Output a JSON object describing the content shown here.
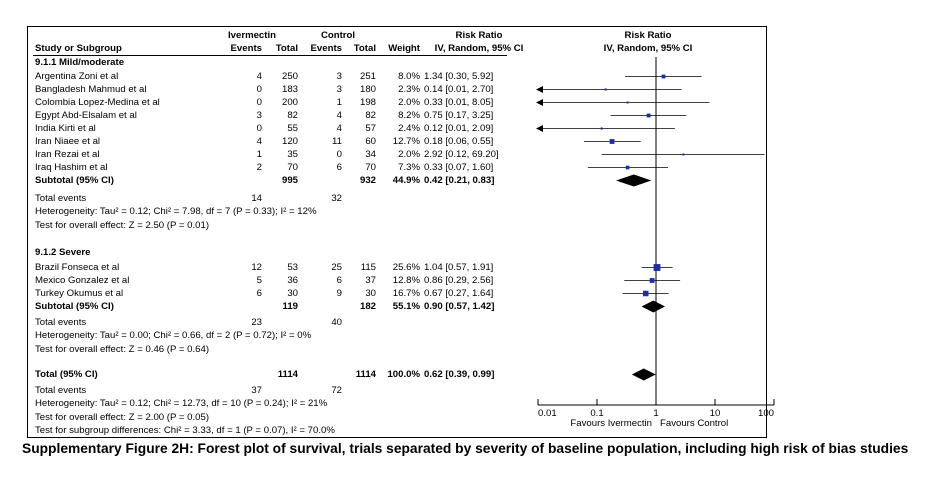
{
  "header": {
    "group1": "Ivermectin",
    "group2": "Control",
    "rr_title": "Risk Ratio",
    "plot_title": "Risk Ratio",
    "study_col": "Study or Subgroup",
    "events1": "Events",
    "total1": "Total",
    "events2": "Events",
    "total2": "Total",
    "weight": "Weight",
    "method": "IV, Random, 95% CI",
    "plot_method": "IV, Random, 95% CI"
  },
  "subgroups": [
    {
      "title": "9.1.1 Mild/moderate",
      "studies": [
        {
          "name": "Argentina Zoni et al",
          "ee": "4",
          "et": "250",
          "ce": "3",
          "ct": "251",
          "w": "8.0%",
          "rr": "1.34 [0.30, 5.92]"
        },
        {
          "name": "Bangladesh Mahmud et al",
          "ee": "0",
          "et": "183",
          "ce": "3",
          "ct": "180",
          "w": "2.3%",
          "rr": "0.14 [0.01, 2.70]"
        },
        {
          "name": "Colombia Lopez-Medina et al",
          "ee": "0",
          "et": "200",
          "ce": "1",
          "ct": "198",
          "w": "2.0%",
          "rr": "0.33 [0.01, 8.05]"
        },
        {
          "name": "Egypt Abd-Elsalam et al",
          "ee": "3",
          "et": "82",
          "ce": "4",
          "ct": "82",
          "w": "8.2%",
          "rr": "0.75 [0.17, 3.25]"
        },
        {
          "name": "India Kirti et al",
          "ee": "0",
          "et": "55",
          "ce": "4",
          "ct": "57",
          "w": "2.4%",
          "rr": "0.12 [0.01, 2.09]"
        },
        {
          "name": "Iran Niaee et al",
          "ee": "4",
          "et": "120",
          "ce": "11",
          "ct": "60",
          "w": "12.7%",
          "rr": "0.18 [0.06, 0.55]"
        },
        {
          "name": "Iran Rezai et al",
          "ee": "1",
          "et": "35",
          "ce": "0",
          "ct": "34",
          "w": "2.0%",
          "rr": "2.92 [0.12, 69.20]"
        },
        {
          "name": "Iraq Hashim et al",
          "ee": "2",
          "et": "70",
          "ce": "6",
          "ct": "70",
          "w": "7.3%",
          "rr": "0.33 [0.07, 1.60]"
        }
      ],
      "subtotal": {
        "label": "Subtotal (95% CI)",
        "et": "995",
        "ct": "932",
        "w": "44.9%",
        "rr": "0.42 [0.21, 0.83]"
      },
      "total_events": {
        "label": "Total events",
        "ee": "14",
        "ce": "32"
      },
      "heterogeneity": "Heterogeneity: Tau² = 0.12; Chi² = 7.98, df = 7 (P = 0.33); I² = 12%",
      "overall": "Test for overall effect: Z = 2.50 (P = 0.01)"
    },
    {
      "title": "9.1.2 Severe",
      "studies": [
        {
          "name": "Brazil Fonseca et al",
          "ee": "12",
          "et": "53",
          "ce": "25",
          "ct": "115",
          "w": "25.6%",
          "rr": "1.04 [0.57, 1.91]"
        },
        {
          "name": "Mexico Gonzalez et al",
          "ee": "5",
          "et": "36",
          "ce": "6",
          "ct": "37",
          "w": "12.8%",
          "rr": "0.86 [0.29, 2.56]"
        },
        {
          "name": "Turkey Okumus et al",
          "ee": "6",
          "et": "30",
          "ce": "9",
          "ct": "30",
          "w": "16.7%",
          "rr": "0.67 [0.27, 1.64]"
        }
      ],
      "subtotal": {
        "label": "Subtotal (95% CI)",
        "et": "119",
        "ct": "182",
        "w": "55.1%",
        "rr": "0.90 [0.57, 1.42]"
      },
      "total_events": {
        "label": "Total events",
        "ee": "23",
        "ce": "40"
      },
      "heterogeneity": "Heterogeneity: Tau² = 0.00; Chi² = 0.66, df = 2 (P = 0.72); I² = 0%",
      "overall": "Test for overall effect: Z = 0.46 (P = 0.64)"
    }
  ],
  "total": {
    "label": "Total (95% CI)",
    "et": "1114",
    "ct": "1114",
    "w": "100.0%",
    "rr": "0.62 [0.39, 0.99]"
  },
  "total_events": {
    "label": "Total events",
    "ee": "37",
    "ce": "72"
  },
  "total_heterogeneity": "Heterogeneity: Tau² = 0.12; Chi² = 12.73, df = 10 (P = 0.24); I² = 21%",
  "total_overall": "Test for overall effect: Z = 2.00 (P = 0.05)",
  "subgroup_diff": "Test for subgroup differences: Chi² = 3.33, df = 1 (P = 0.07), I² = 70.0%",
  "caption": "Supplementary Figure 2H: Forest plot of survival, trials separated by severity of baseline population, including high risk of bias studies",
  "colors": {
    "marker": "#1c2ea6",
    "line": "#000000"
  },
  "chart_data": {
    "type": "forest",
    "scale": "log",
    "xlim": [
      0.01,
      100
    ],
    "ticks": [
      "0.01",
      "0.1",
      "1",
      "10",
      "100"
    ],
    "tick_values": [
      0.01,
      0.1,
      1,
      10,
      100
    ],
    "left_label": "Favours Ivermectin",
    "right_label": "Favours Control",
    "studies": [
      {
        "group": 0,
        "name": "Argentina Zoni et al",
        "rr": 1.34,
        "lo": 0.3,
        "hi": 5.92,
        "weight": 8.0
      },
      {
        "group": 0,
        "name": "Bangladesh Mahmud et al",
        "rr": 0.14,
        "lo": 0.01,
        "hi": 2.7,
        "weight": 2.3
      },
      {
        "group": 0,
        "name": "Colombia Lopez-Medina et al",
        "rr": 0.33,
        "lo": 0.01,
        "hi": 8.05,
        "weight": 2.0
      },
      {
        "group": 0,
        "name": "Egypt Abd-Elsalam et al",
        "rr": 0.75,
        "lo": 0.17,
        "hi": 3.25,
        "weight": 8.2
      },
      {
        "group": 0,
        "name": "India Kirti et al",
        "rr": 0.12,
        "lo": 0.01,
        "hi": 2.09,
        "weight": 2.4
      },
      {
        "group": 0,
        "name": "Iran Niaee et al",
        "rr": 0.18,
        "lo": 0.06,
        "hi": 0.55,
        "weight": 12.7
      },
      {
        "group": 0,
        "name": "Iran Rezai et al",
        "rr": 2.92,
        "lo": 0.12,
        "hi": 69.2,
        "weight": 2.0
      },
      {
        "group": 0,
        "name": "Iraq Hashim et al",
        "rr": 0.33,
        "lo": 0.07,
        "hi": 1.6,
        "weight": 7.3
      },
      {
        "group": 1,
        "name": "Brazil Fonseca et al",
        "rr": 1.04,
        "lo": 0.57,
        "hi": 1.91,
        "weight": 25.6
      },
      {
        "group": 1,
        "name": "Mexico Gonzalez et al",
        "rr": 0.86,
        "lo": 0.29,
        "hi": 2.56,
        "weight": 12.8
      },
      {
        "group": 1,
        "name": "Turkey Okumus et al",
        "rr": 0.67,
        "lo": 0.27,
        "hi": 1.64,
        "weight": 16.7
      }
    ],
    "pooled": [
      {
        "label": "Subtotal (95% CI) 9.1.1",
        "rr": 0.42,
        "lo": 0.21,
        "hi": 0.83
      },
      {
        "label": "Subtotal (95% CI) 9.1.2",
        "rr": 0.9,
        "lo": 0.57,
        "hi": 1.42
      },
      {
        "label": "Total (95% CI)",
        "rr": 0.62,
        "lo": 0.39,
        "hi": 0.99
      }
    ]
  }
}
